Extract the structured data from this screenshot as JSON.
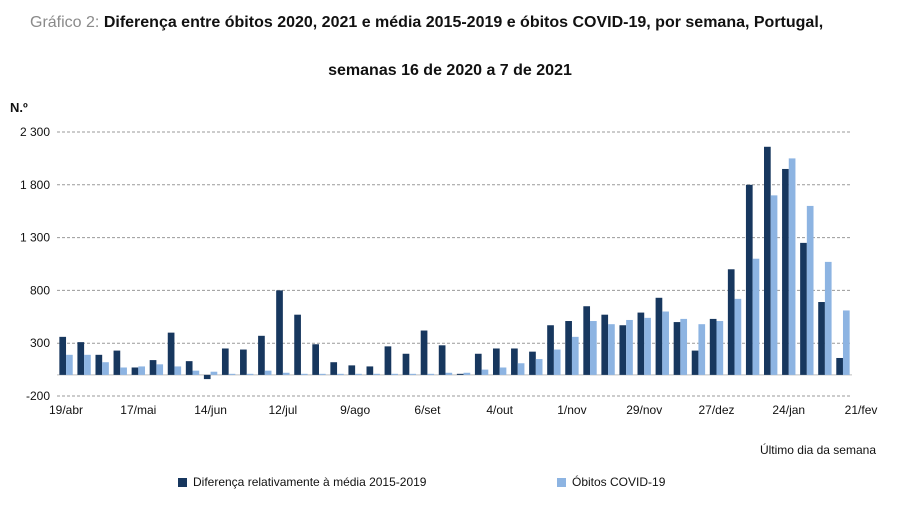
{
  "title": {
    "prefix": "Gráfico 2:",
    "line1": "Diferença entre óbitos 2020, 2021 e média 2015-2019 e óbitos COVID-19, por semana, Portugal,",
    "line2": "semanas 16 de 2020 a 7 de 2021"
  },
  "chart_data": {
    "type": "bar",
    "ylabel": "N.º",
    "xlabel": "Último dia da semana",
    "ylim": [
      -200,
      2300
    ],
    "yticks": [
      -200,
      300,
      800,
      1300,
      1800,
      2300
    ],
    "ytick_labels": [
      "-200",
      "300",
      "800",
      "1 300",
      "1 800",
      "2 300"
    ],
    "grid": true,
    "legend_position": "bottom",
    "colors": {
      "diff": "#17375e",
      "covid": "#8db4e2"
    },
    "xtick_labels": [
      {
        "index": 0,
        "label": "19/abr"
      },
      {
        "index": 4,
        "label": "17/mai"
      },
      {
        "index": 8,
        "label": "14/jun"
      },
      {
        "index": 12,
        "label": "12/jul"
      },
      {
        "index": 16,
        "label": "9/ago"
      },
      {
        "index": 20,
        "label": "6/set"
      },
      {
        "index": 24,
        "label": "4/out"
      },
      {
        "index": 28,
        "label": "1/nov"
      },
      {
        "index": 32,
        "label": "29/nov"
      },
      {
        "index": 36,
        "label": "27/dez"
      },
      {
        "index": 40,
        "label": "24/jan"
      },
      {
        "index": 44,
        "label": "21/fev"
      }
    ],
    "series": [
      {
        "name": "Diferença relativamente à média 2015-2019",
        "values": [
          360,
          310,
          190,
          230,
          70,
          140,
          400,
          130,
          -40,
          250,
          240,
          370,
          800,
          570,
          290,
          120,
          90,
          80,
          270,
          200,
          420,
          280,
          10,
          200,
          250,
          250,
          220,
          470,
          510,
          650,
          570,
          470,
          590,
          730,
          500,
          230,
          530,
          1000,
          1800,
          2160,
          1950,
          1250,
          690,
          160
        ]
      },
      {
        "name": "Óbitos COVID-19",
        "values": [
          190,
          190,
          120,
          70,
          80,
          100,
          80,
          40,
          30,
          10,
          10,
          40,
          20,
          10,
          10,
          10,
          10,
          10,
          10,
          10,
          10,
          20,
          20,
          50,
          70,
          110,
          150,
          240,
          360,
          510,
          480,
          520,
          540,
          600,
          530,
          480,
          510,
          720,
          1100,
          1700,
          2050,
          1600,
          1070,
          610
        ]
      }
    ]
  }
}
